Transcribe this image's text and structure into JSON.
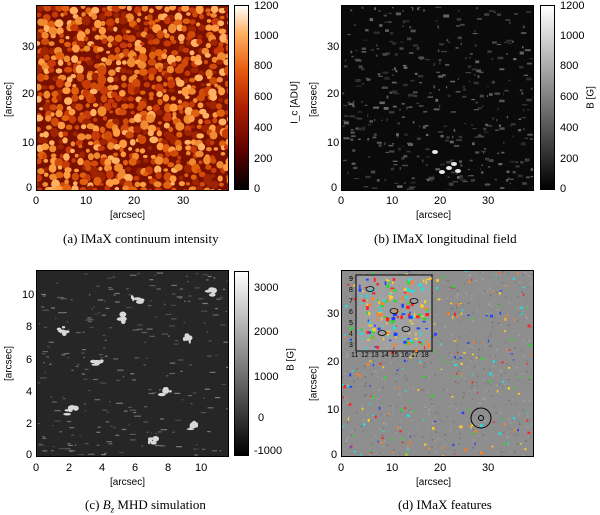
{
  "figure": {
    "panels": [
      {
        "id": "a",
        "caption": "(a) IMaX continuum intensity",
        "xlabel": "[arcsec]",
        "ylabel": "[arcsec]",
        "xticks": [
          "0",
          "10",
          "20",
          "30"
        ],
        "yticks": [
          "0",
          "10",
          "20",
          "30"
        ],
        "colorbar_label": "I_c [ADU]",
        "colorbar_ticks": [
          "0",
          "200",
          "400",
          "600",
          "800",
          "1000",
          "1200"
        ],
        "colormap": [
          "#000000",
          "#5a0000",
          "#b02000",
          "#e85a10",
          "#ffb060",
          "#ffffff"
        ]
      },
      {
        "id": "b",
        "caption": "(b) IMaX longitudinal field",
        "xlabel": "[arcsec]",
        "ylabel": "[arcsec]",
        "xticks": [
          "0",
          "10",
          "20",
          "30"
        ],
        "yticks": [
          "0",
          "10",
          "20",
          "30"
        ],
        "colorbar_label": "B [G]",
        "colorbar_ticks": [
          "0",
          "200",
          "400",
          "600",
          "800",
          "1000",
          "1200"
        ],
        "colormap": [
          "#000000",
          "#ffffff"
        ]
      },
      {
        "id": "c",
        "caption_prefix": "(c) ",
        "caption_var": "B",
        "caption_sub": "z",
        "caption_rest": " MHD simulation",
        "xlabel": "[arcsec]",
        "ylabel": "[arcsec]",
        "xticks": [
          "0",
          "2",
          "4",
          "6",
          "8",
          "10"
        ],
        "yticks": [
          "0",
          "2",
          "4",
          "6",
          "8",
          "10"
        ],
        "colorbar_label": "B [G]",
        "colorbar_ticks": [
          "-1000",
          "0",
          "1000",
          "2000",
          "3000"
        ],
        "colormap": [
          "#000000",
          "#ffffff"
        ]
      },
      {
        "id": "d",
        "caption": "(d) IMaX features",
        "xlabel": "[arcsec]",
        "ylabel": "[arcsec]",
        "xticks": [
          "0",
          "10",
          "20",
          "30"
        ],
        "yticks": [
          "0",
          "10",
          "20",
          "30"
        ],
        "inset_xticks": [
          "11",
          "12",
          "13",
          "14",
          "15",
          "16",
          "17",
          "18"
        ],
        "inset_yticks": [
          "3",
          "4",
          "5",
          "6",
          "7",
          "8",
          "9"
        ]
      }
    ]
  }
}
